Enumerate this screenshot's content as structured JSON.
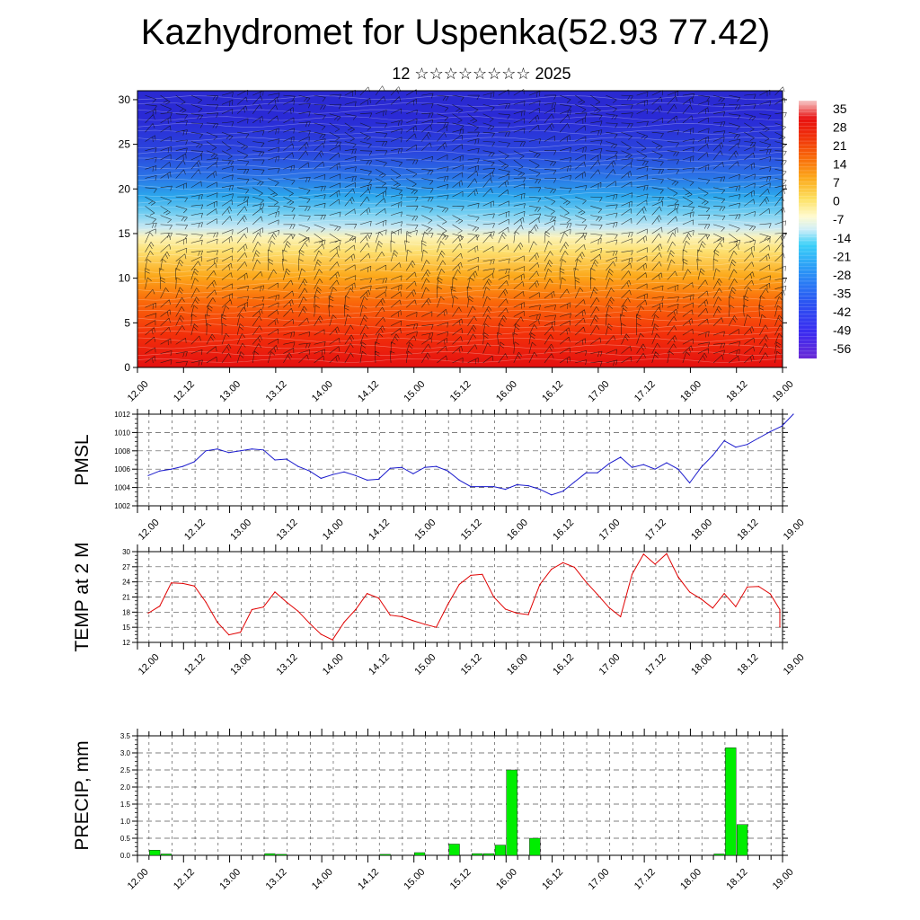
{
  "title": "Kazhydromet for Uspenka(52.93 77.42)",
  "subtitle": "12 ☆☆☆☆☆☆☆☆ 2025",
  "colors": {
    "pmsl_line": "#1a1acc",
    "temp_line": "#e00000",
    "precip_bar": "#00ee00",
    "grid": "#555555"
  },
  "x_tick_labels": [
    "12.00",
    "12.12",
    "13.00",
    "13.12",
    "14.00",
    "14.12",
    "15.00",
    "15.12",
    "16.00",
    "16.12",
    "17.00",
    "17.12",
    "18.00",
    "18.12",
    "19.00"
  ],
  "chart_data": [
    {
      "type": "heatmap",
      "name": "",
      "x_ticks": [
        "12.00",
        "12.12",
        "13.00",
        "13.12",
        "14.00",
        "14.12",
        "15.00",
        "15.12",
        "16.00",
        "16.12",
        "17.00",
        "17.12",
        "18.00",
        "18.12",
        "19.00"
      ],
      "y_ticks": [
        0,
        5,
        10,
        15,
        20,
        25,
        30
      ],
      "ylim": [
        0,
        31
      ],
      "colorbar_labels": [
        35,
        28,
        21,
        14,
        7,
        0,
        -7,
        -14,
        -21,
        -28,
        -35,
        -42,
        -49,
        -56
      ],
      "wind_barbs": true
    },
    {
      "type": "line",
      "ylabel": "PMSL",
      "ylim": [
        1002,
        1012
      ],
      "y_ticks": [
        1002,
        1004,
        1006,
        1008,
        1010,
        1012
      ],
      "x": [
        0,
        3,
        6,
        9,
        12,
        15,
        18,
        21,
        24,
        27,
        30,
        33,
        36,
        39,
        42,
        45,
        48,
        51,
        54,
        57,
        60,
        63,
        66,
        69,
        72,
        75,
        78,
        81,
        84,
        87,
        90,
        93,
        96,
        99,
        102,
        105,
        108,
        111,
        114,
        117,
        120,
        123,
        126,
        129,
        132,
        135,
        138,
        141,
        144,
        147,
        150,
        153,
        156,
        159,
        162,
        165
      ],
      "values": [
        1005.3,
        1005.8,
        1006.0,
        1006.3,
        1006.8,
        1008.0,
        1008.2,
        1007.8,
        1008.0,
        1008.2,
        1008.1,
        1007.0,
        1007.1,
        1006.3,
        1005.8,
        1005.0,
        1005.4,
        1005.7,
        1005.3,
        1004.8,
        1004.9,
        1006.1,
        1006.2,
        1005.5,
        1006.2,
        1006.3,
        1005.8,
        1004.8,
        1004.1,
        1004.1,
        1004.1,
        1003.8,
        1004.3,
        1004.2,
        1003.8,
        1003.2,
        1003.6,
        1004.6,
        1005.6,
        1005.6,
        1006.6,
        1007.3,
        1006.2,
        1006.5,
        1006.0,
        1006.7,
        1006.0,
        1004.5,
        1006.2,
        1007.5,
        1009.1,
        1008.4,
        1008.7,
        1009.4,
        1010.1,
        1010.7
      ],
      "x_end_value": 1012.0
    },
    {
      "type": "line",
      "ylabel": "TEMP at 2 M",
      "ylim": [
        12,
        30
      ],
      "y_ticks": [
        12,
        15,
        18,
        21,
        24,
        27,
        30
      ],
      "x": [
        0,
        3,
        6,
        9,
        12,
        15,
        18,
        21,
        24,
        27,
        30,
        33,
        36,
        39,
        42,
        45,
        48,
        51,
        54,
        57,
        60,
        63,
        66,
        69,
        72,
        75,
        78,
        81,
        84,
        87,
        90,
        93,
        96,
        99,
        102,
        105,
        108,
        111,
        114,
        117,
        120,
        123,
        126,
        129,
        132,
        135,
        138,
        141,
        144,
        147,
        150,
        153,
        156,
        159,
        162,
        165
      ],
      "values": [
        17.8,
        19.2,
        23.8,
        23.7,
        23.2,
        20.0,
        16.0,
        13.5,
        14.0,
        18.5,
        19.0,
        22.0,
        20.0,
        18.2,
        15.8,
        13.6,
        12.5,
        16.0,
        18.5,
        21.7,
        20.8,
        17.4,
        17.1,
        16.3,
        15.6,
        15.0,
        19.5,
        23.5,
        25.3,
        25.5,
        21.0,
        18.6,
        17.8,
        17.5,
        23.5,
        26.5,
        27.8,
        26.9,
        24.0,
        21.5,
        18.9,
        17.1,
        25.5,
        29.5,
        27.5,
        29.6,
        25.0,
        22.0,
        20.6,
        18.8,
        21.7,
        19.1,
        23.0,
        23.1,
        21.6,
        18.5
      ],
      "x_end_values": [
        15.1,
        15.1
      ]
    },
    {
      "type": "bar",
      "ylabel": "PRECIP, mm",
      "ylim": [
        0,
        3.5
      ],
      "y_ticks": [
        "0.0",
        "0.5",
        "1.0",
        "1.5",
        "2.0",
        "2.5",
        "3.0",
        "3.5"
      ],
      "bars": [
        {
          "x": 3,
          "value": 0.15
        },
        {
          "x": 6,
          "value": 0.04
        },
        {
          "x": 33,
          "value": 0.05
        },
        {
          "x": 36,
          "value": 0.03
        },
        {
          "x": 63,
          "value": 0.03
        },
        {
          "x": 72,
          "value": 0.08
        },
        {
          "x": 81,
          "value": 0.33
        },
        {
          "x": 87,
          "value": 0.05
        },
        {
          "x": 90,
          "value": 0.05
        },
        {
          "x": 93,
          "value": 0.3
        },
        {
          "x": 96,
          "value": 2.5
        },
        {
          "x": 102,
          "value": 0.5
        },
        {
          "x": 150,
          "value": 0.04
        },
        {
          "x": 153,
          "value": 3.15
        },
        {
          "x": 156,
          "value": 0.9
        }
      ]
    }
  ]
}
